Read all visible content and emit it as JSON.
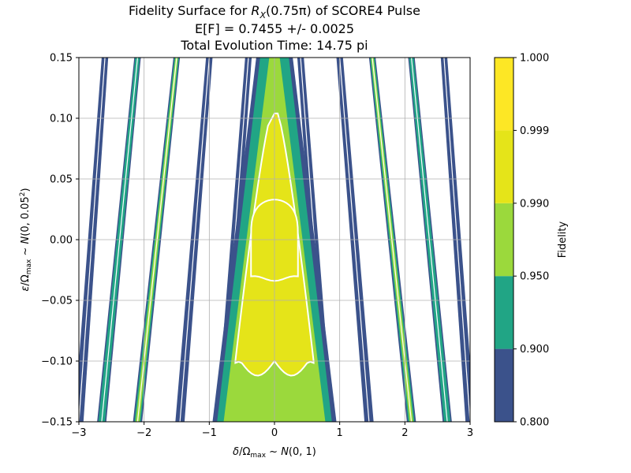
{
  "title": {
    "line1_prefix": "Fidelity Surface for ",
    "line1_math_R": "R",
    "line1_math_sub": "X",
    "line1_math_arg": "(0.75π)",
    "line1_suffix": " of SCORE4 Pulse",
    "line2": "E[F] = 0.7455 +/- 0.0025",
    "line3": "Total Evolution Time: 14.75 pi"
  },
  "chart_data": {
    "type": "heatmap",
    "subtype": "filled-contour",
    "xlabel": "δ/Ω_max ~ N(0, 1)",
    "ylabel": "ε/Ω_max ~ N(0, 0.05²)",
    "xlim": [
      -3,
      3
    ],
    "ylim": [
      -0.15,
      0.15
    ],
    "x_ticks": [
      "−3",
      "−2",
      "−1",
      "0",
      "1",
      "2",
      "3"
    ],
    "x_tick_values": [
      -3,
      -2,
      -1,
      0,
      1,
      2,
      3
    ],
    "y_ticks": [
      "0.15",
      "0.10",
      "0.05",
      "0.00",
      "−0.05",
      "−0.10",
      "−0.15"
    ],
    "y_tick_values": [
      0.15,
      0.1,
      0.05,
      0.0,
      -0.05,
      -0.1,
      -0.15
    ],
    "grid": true,
    "colorbar": {
      "label": "Fidelity",
      "levels": [
        0.8,
        0.9,
        0.95,
        0.99,
        0.999,
        1.0
      ],
      "tick_labels": [
        "0.800",
        "0.900",
        "0.950",
        "0.990",
        "0.999",
        "1.000"
      ],
      "colors": [
        "#3b528b",
        "#21a585",
        "#9bd93c",
        "#e5e419",
        "#fde725"
      ]
    },
    "contour_line_color": "#ffffff",
    "central_lobe": {
      "fidelity_bands": [
        {
          "band": "0.950-0.990",
          "x_halfwidth_at_top": 0.08,
          "x_halfwidth_at_bottom": 0.78
        },
        {
          "band": "0.990-0.999",
          "y_top": 0.104,
          "x_halfwidth_at_bottom": 0.6,
          "y_bottom": -0.1
        },
        {
          "band": "0.999-1.000",
          "y_top": 0.033,
          "y_bottom": -0.032
        }
      ]
    },
    "side_lobes": [
      {
        "x_at_top": -2.6,
        "x_at_bottom": -3.0,
        "band": "0.800-0.900"
      },
      {
        "x_at_top": -2.1,
        "x_at_bottom": -2.65,
        "band": "0.900-0.950"
      },
      {
        "x_at_top": -1.5,
        "x_at_bottom": -2.1,
        "band": "0.950-0.990"
      },
      {
        "x_at_top": -1.0,
        "x_at_bottom": -1.45,
        "band": "0.800-0.900"
      },
      {
        "x_at_top": -0.4,
        "x_at_bottom": -0.82,
        "band": "0.800-0.900"
      },
      {
        "x_at_top": 0.4,
        "x_at_bottom": 0.82,
        "band": "0.800-0.900"
      },
      {
        "x_at_top": 1.0,
        "x_at_bottom": 1.45,
        "band": "0.800-0.900"
      },
      {
        "x_at_top": 1.5,
        "x_at_bottom": 2.1,
        "band": "0.950-0.990"
      },
      {
        "x_at_top": 2.1,
        "x_at_bottom": 2.65,
        "band": "0.900-0.950"
      },
      {
        "x_at_top": 2.6,
        "x_at_bottom": 3.0,
        "band": "0.800-0.900"
      }
    ]
  }
}
